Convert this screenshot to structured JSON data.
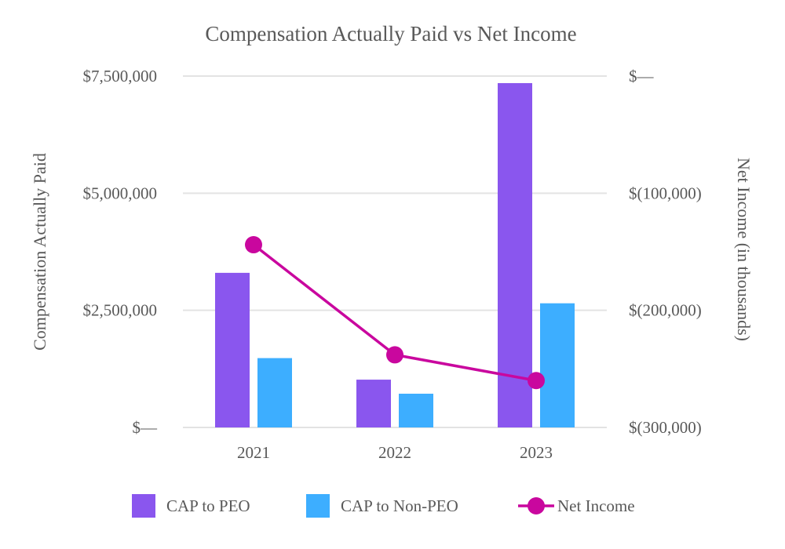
{
  "chart_data": {
    "type": "bar",
    "title": "Compensation Actually Paid vs Net Income",
    "categories": [
      "2021",
      "2022",
      "2023"
    ],
    "xlabel": "",
    "ylabel": "Compensation Actually Paid",
    "ylabel_right": "Net Income (in thousands)",
    "ylim": [
      0,
      7500000
    ],
    "ylim_right": [
      -300000,
      0
    ],
    "yticks": [
      {
        "value": 0,
        "label": "$—"
      },
      {
        "value": 2500000,
        "label": "$2,500,000"
      },
      {
        "value": 5000000,
        "label": "$5,000,000"
      },
      {
        "value": 7500000,
        "label": "$7,500,000"
      }
    ],
    "yticks_right": [
      {
        "value": 0,
        "label": "$—"
      },
      {
        "value": -100000,
        "label": "$(100,000)"
      },
      {
        "value": -200000,
        "label": "$(200,000)"
      },
      {
        "value": -300000,
        "label": "$(300,000)"
      }
    ],
    "grid": true,
    "legend_position": "bottom",
    "series": [
      {
        "name": "CAP to PEO",
        "kind": "bar",
        "axis": "left",
        "color": "#8a56ee",
        "values": [
          3300000,
          1020000,
          7350000
        ]
      },
      {
        "name": "CAP to Non-PEO",
        "kind": "bar",
        "axis": "left",
        "color": "#3daeff",
        "values": [
          1480000,
          720000,
          2650000
        ]
      },
      {
        "name": "Net Income",
        "kind": "line",
        "axis": "right",
        "color": "#c9079e",
        "values": [
          -144000,
          -238000,
          -260000
        ]
      }
    ]
  }
}
